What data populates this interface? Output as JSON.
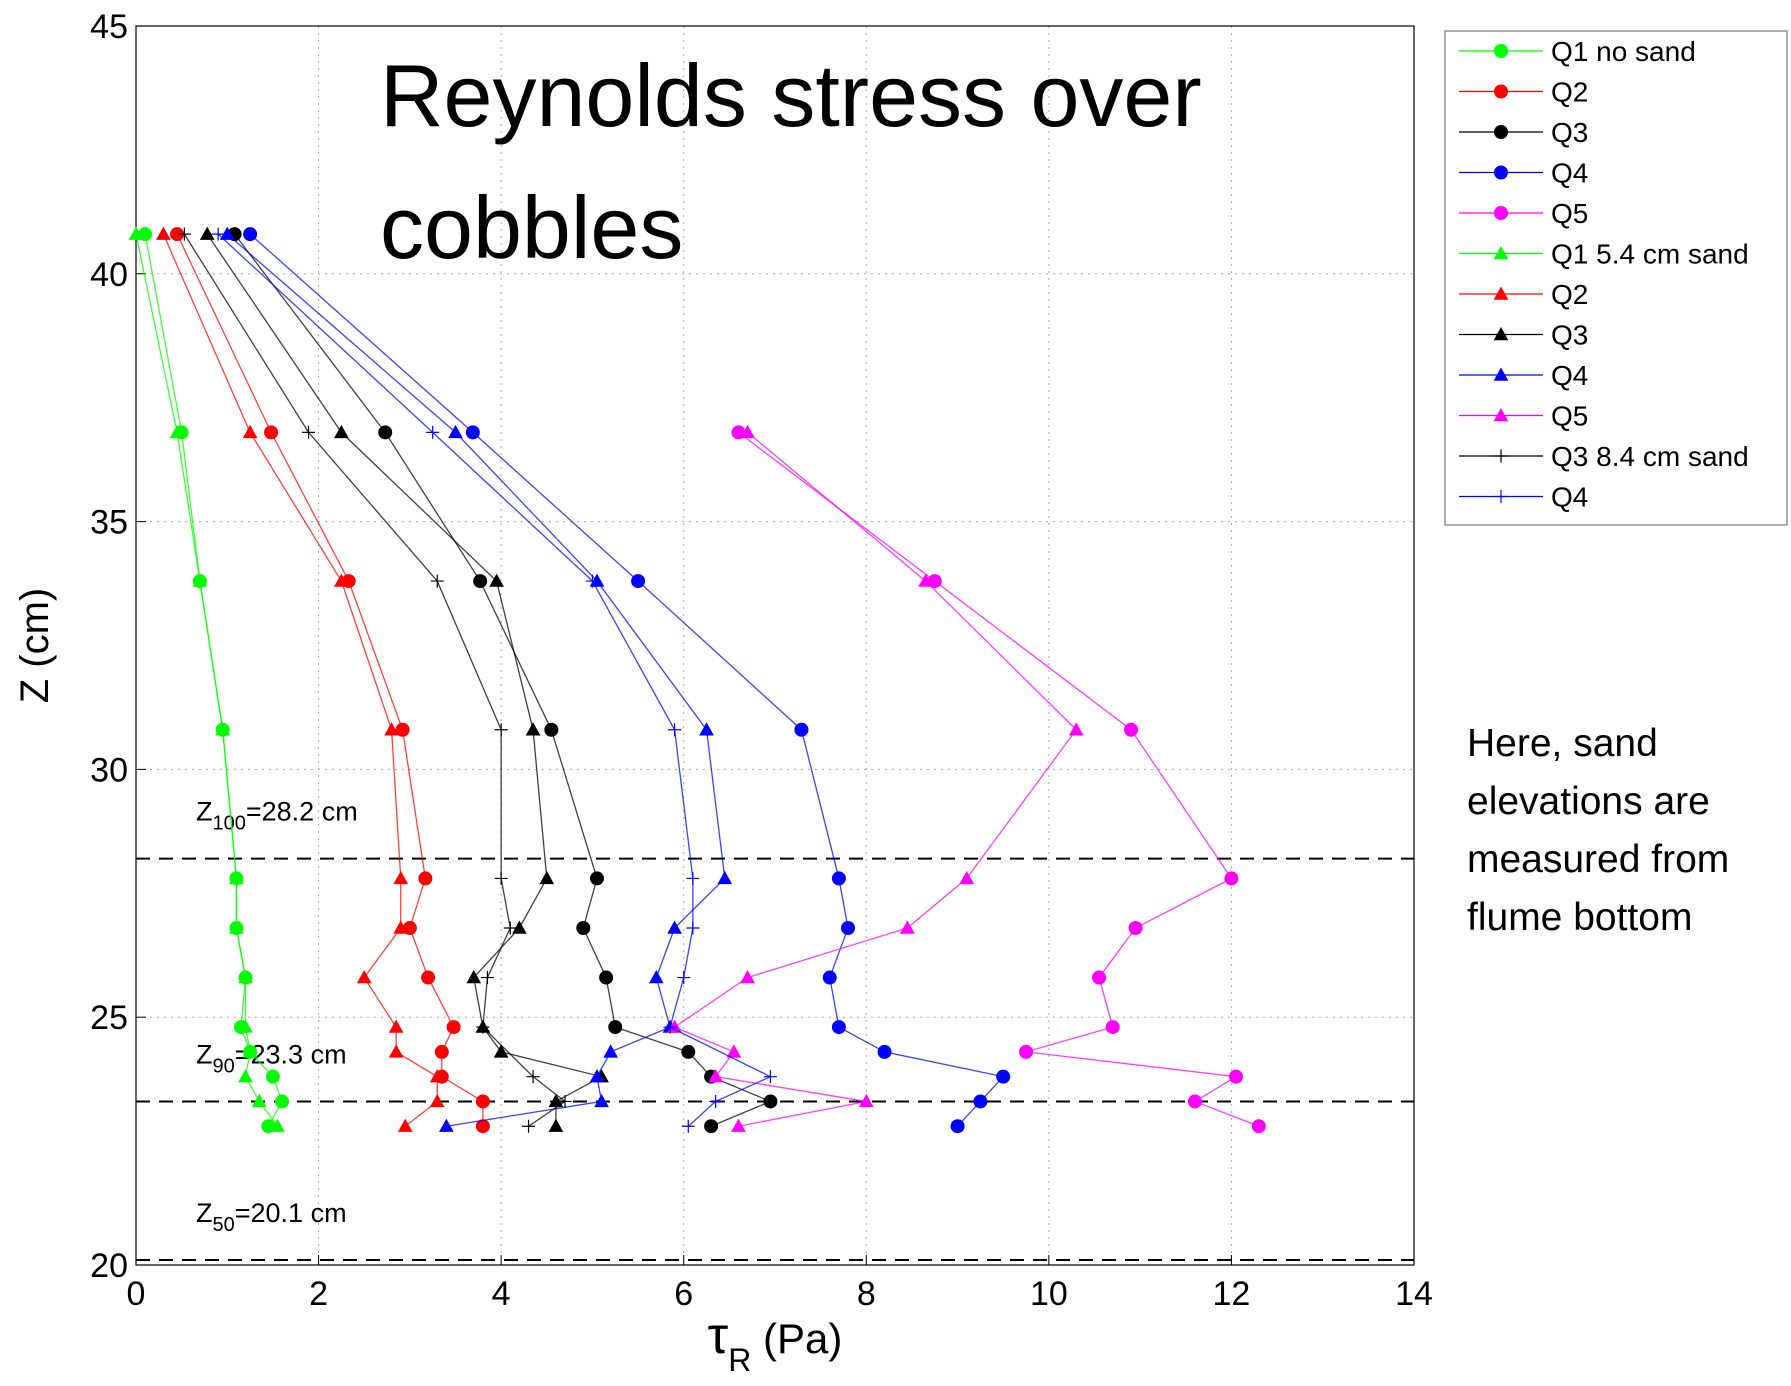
{
  "chart_data": {
    "type": "line",
    "title_lines": [
      "Reynolds stress over",
      "cobbles"
    ],
    "xlabel": {
      "main": "τ",
      "sub": "R",
      "rest": " (Pa)"
    },
    "ylabel": "Z (cm)",
    "xlim": [
      0,
      14
    ],
    "xticks": [
      0,
      2,
      4,
      6,
      8,
      10,
      12,
      14
    ],
    "ylim": [
      20,
      45
    ],
    "yticks": [
      20,
      25,
      30,
      35,
      40,
      45
    ],
    "grid": true,
    "legend": "outside-upper-right",
    "series": [
      {
        "name": "Q1 no sand",
        "color": "#00ff00",
        "marker": "circle",
        "x": [
          0.1,
          0.5,
          0.7,
          0.95,
          1.1,
          1.1,
          1.2,
          1.15,
          1.25,
          1.5,
          1.6,
          1.45
        ],
        "y": [
          40.8,
          36.8,
          33.8,
          30.8,
          27.8,
          26.8,
          25.8,
          24.8,
          24.3,
          23.8,
          23.3,
          22.8
        ]
      },
      {
        "name": "Q2",
        "color": "#ff0000",
        "marker": "circle",
        "x": [
          0.45,
          1.48,
          2.33,
          2.92,
          3.17,
          3.0,
          3.2,
          3.48,
          3.35,
          3.35,
          3.8,
          3.8
        ],
        "y": [
          40.8,
          36.8,
          33.8,
          30.8,
          27.8,
          26.8,
          25.8,
          24.8,
          24.3,
          23.8,
          23.3,
          22.8
        ]
      },
      {
        "name": "Q3",
        "color": "#000000",
        "marker": "circle",
        "x": [
          1.08,
          2.73,
          3.77,
          4.55,
          5.05,
          4.9,
          5.15,
          5.25,
          6.05,
          6.3,
          6.95,
          6.3
        ],
        "y": [
          40.8,
          36.8,
          33.8,
          30.8,
          27.8,
          26.8,
          25.8,
          24.8,
          24.3,
          23.8,
          23.3,
          22.8
        ]
      },
      {
        "name": "Q4",
        "color": "#0000ff",
        "marker": "circle",
        "x": [
          1.25,
          3.69,
          5.5,
          7.29,
          7.7,
          7.8,
          7.6,
          7.7,
          8.2,
          9.5,
          9.25,
          9.0
        ],
        "y": [
          40.8,
          36.8,
          33.8,
          30.8,
          27.8,
          26.8,
          25.8,
          24.8,
          24.3,
          23.8,
          23.3,
          22.8
        ]
      },
      {
        "name": "Q5",
        "color": "#ff00ff",
        "marker": "circle",
        "x": [
          6.6,
          8.75,
          10.9,
          12.0,
          10.95,
          10.55,
          10.7,
          9.75,
          12.05,
          11.6,
          12.3
        ],
        "y": [
          36.8,
          33.8,
          30.8,
          27.8,
          26.8,
          25.8,
          24.8,
          24.3,
          23.8,
          23.3,
          22.8
        ]
      },
      {
        "name": "Q1 5.4 cm sand",
        "color": "#00ff00",
        "marker": "triangle",
        "x": [
          0.0,
          0.45,
          0.7,
          0.95,
          1.1,
          1.1,
          1.2,
          1.2,
          1.25,
          1.2,
          1.35,
          1.55
        ],
        "y": [
          40.8,
          36.8,
          33.8,
          30.8,
          27.8,
          26.8,
          25.8,
          24.8,
          24.3,
          23.8,
          23.3,
          22.8
        ]
      },
      {
        "name": "Q2",
        "color": "#ff0000",
        "marker": "triangle",
        "x": [
          0.3,
          1.25,
          2.25,
          2.8,
          2.9,
          2.9,
          2.5,
          2.85,
          2.85,
          3.3,
          3.3,
          2.95
        ],
        "y": [
          40.8,
          36.8,
          33.8,
          30.8,
          27.8,
          26.8,
          25.8,
          24.8,
          24.3,
          23.8,
          23.3,
          22.8
        ]
      },
      {
        "name": "Q3",
        "color": "#000000",
        "marker": "triangle",
        "x": [
          0.78,
          2.25,
          3.95,
          4.35,
          4.5,
          4.2,
          3.7,
          3.8,
          4.0,
          5.1,
          4.6,
          4.6
        ],
        "y": [
          40.8,
          36.8,
          33.8,
          30.8,
          27.8,
          26.8,
          25.8,
          24.8,
          24.3,
          23.8,
          23.3,
          22.8
        ]
      },
      {
        "name": "Q4",
        "color": "#0000ff",
        "marker": "triangle",
        "x": [
          1.0,
          3.5,
          5.05,
          6.25,
          6.45,
          5.9,
          5.7,
          5.85,
          5.2,
          5.05,
          5.1,
          3.4
        ],
        "y": [
          40.8,
          36.8,
          33.8,
          30.8,
          27.8,
          26.8,
          25.8,
          24.8,
          24.3,
          23.8,
          23.3,
          22.8
        ]
      },
      {
        "name": "Q5",
        "color": "#ff00ff",
        "marker": "triangle",
        "x": [
          6.7,
          8.65,
          10.3,
          9.1,
          8.45,
          6.7,
          5.9,
          6.55,
          6.35,
          8.0,
          6.6
        ],
        "y": [
          36.8,
          33.8,
          30.8,
          27.8,
          26.8,
          25.8,
          24.8,
          24.3,
          23.8,
          23.3,
          22.8
        ]
      },
      {
        "name": "Q3 8.4 cm sand",
        "color": "#000000",
        "marker": "plus",
        "x": [
          0.53,
          1.89,
          3.3,
          4.0,
          4.0,
          4.1,
          3.85,
          3.8,
          4.35,
          4.7,
          4.3
        ],
        "y": [
          40.8,
          36.8,
          33.8,
          30.8,
          27.8,
          26.8,
          25.8,
          24.8,
          23.8,
          23.3,
          22.8
        ]
      },
      {
        "name": "Q4",
        "color": "#0000ff",
        "marker": "plus",
        "x": [
          0.9,
          3.25,
          5.0,
          5.9,
          6.1,
          6.1,
          6.0,
          5.85,
          6.95,
          6.35,
          6.05
        ],
        "y": [
          40.8,
          36.8,
          33.8,
          30.8,
          27.8,
          26.8,
          25.8,
          24.8,
          23.8,
          23.3,
          22.8
        ]
      }
    ],
    "hlines": [
      {
        "y": 28.2,
        "label_main": "Z",
        "label_sub": "100",
        "label_rest": "=28.2 cm"
      },
      {
        "y": 23.3,
        "label_main": "Z",
        "label_sub": "90",
        "label_rest": "=23.3 cm"
      },
      {
        "y": 20.1,
        "label_main": "Z",
        "label_sub": "50",
        "label_rest": "=20.1 cm"
      }
    ],
    "note_lines": [
      "Here, sand",
      "elevations are",
      "measured from",
      "flume bottom"
    ]
  }
}
